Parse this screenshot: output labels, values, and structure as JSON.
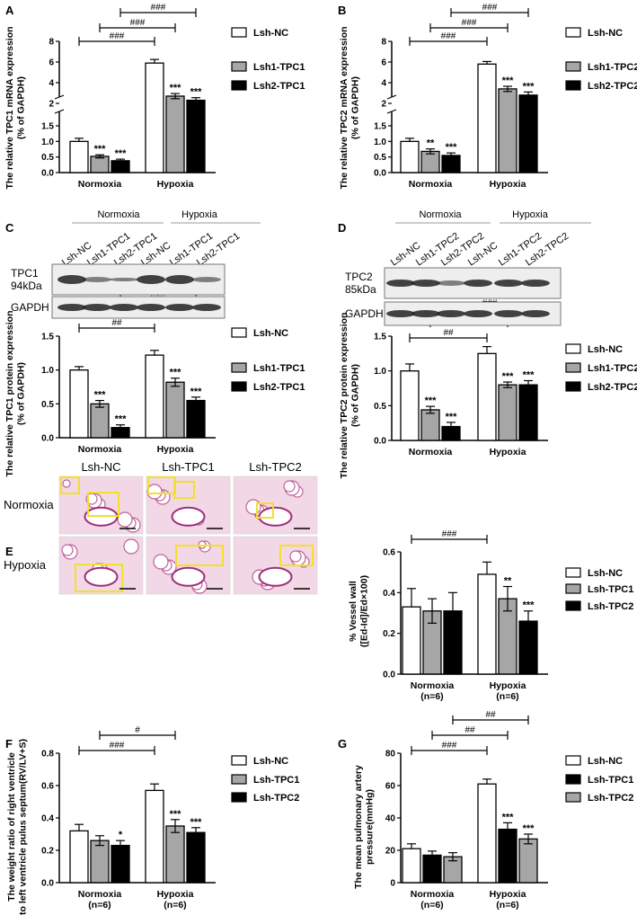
{
  "panel_letters": [
    "A",
    "B",
    "C",
    "D",
    "E",
    "F",
    "G"
  ],
  "blots": {
    "C": {
      "groups": [
        "Normoxia",
        "Hypoxia"
      ],
      "lanes": [
        "Lsh-NC",
        "Lsh1-TPC1",
        "Lsh2-TPC1",
        "Lsh-NC",
        "Lsh1-TPC1",
        "Lsh2-TPC1"
      ],
      "bands": [
        "TPC1\n94kDa",
        "GAPDH"
      ]
    },
    "D": {
      "groups": [
        "Normoxia",
        "Hypoxia"
      ],
      "lanes": [
        "Lsh-NC",
        "Lsh1-TPC2",
        "Lsh2-TPC2",
        "Lsh-NC",
        "Lsh1-TPC2",
        "Lsh2-TPC2"
      ],
      "bands": [
        "TPC2\n85kDa",
        "GAPDH"
      ]
    }
  },
  "histology": {
    "columns": [
      "Lsh-NC",
      "Lsh-TPC1",
      "Lsh-TPC2"
    ],
    "rows": [
      "Normoxia",
      "Hypoxia"
    ]
  },
  "colors": {
    "white": "#ffffff",
    "grey": "#a6a6a6",
    "black": "#000000"
  },
  "chart_data": [
    {
      "id": "A",
      "type": "bar",
      "broken_axis": true,
      "ylabel": "The relative TPC1 mRNA expression\n(% of GAPDH)",
      "categories": [
        "Normoxia",
        "Hypoxia"
      ],
      "yticks_low": [
        "0.0",
        "0.5",
        "1.0",
        "1.5"
      ],
      "yticks_high": [
        "2",
        "4",
        "6",
        "8"
      ],
      "series": [
        {
          "name": "Lsh-NC",
          "fill": "white",
          "values": [
            1.0,
            5.9
          ],
          "err": [
            0.1,
            0.35
          ],
          "sig": [
            "",
            ""
          ]
        },
        {
          "name": "Lsh1-TPC1",
          "fill": "grey",
          "values": [
            0.52,
            2.7
          ],
          "err": [
            0.05,
            0.25
          ],
          "sig": [
            "***",
            "***"
          ]
        },
        {
          "name": "Lsh2-TPC1",
          "fill": "black",
          "values": [
            0.38,
            2.3
          ],
          "err": [
            0.05,
            0.25
          ],
          "sig": [
            "***",
            "***"
          ]
        }
      ],
      "brackets": [
        "###",
        "###",
        "###"
      ]
    },
    {
      "id": "B",
      "type": "bar",
      "broken_axis": true,
      "ylabel": "The relative TPC2 mRNA expression\n(% of GAPDH)",
      "categories": [
        "Normoxia",
        "Hypoxia"
      ],
      "yticks_low": [
        "0.0",
        "0.5",
        "1.0",
        "1.5"
      ],
      "yticks_high": [
        "2",
        "4",
        "6",
        "8"
      ],
      "series": [
        {
          "name": "Lsh-NC",
          "fill": "white",
          "values": [
            1.0,
            5.8
          ],
          "err": [
            0.1,
            0.25
          ],
          "sig": [
            "",
            ""
          ]
        },
        {
          "name": "Lsh1-TPC2",
          "fill": "grey",
          "values": [
            0.68,
            3.4
          ],
          "err": [
            0.08,
            0.25
          ],
          "sig": [
            "**",
            "***"
          ]
        },
        {
          "name": "Lsh2-TPC2",
          "fill": "black",
          "values": [
            0.55,
            2.8
          ],
          "err": [
            0.08,
            0.3
          ],
          "sig": [
            "***",
            "***"
          ]
        }
      ],
      "brackets": [
        "###",
        "###",
        "###"
      ]
    },
    {
      "id": "C-bar",
      "type": "bar",
      "ylabel": "The relative TPC1 protein expression\n(% of GAPDH)",
      "categories": [
        "Normoxia",
        "Hypoxia"
      ],
      "yticks": [
        "0.0",
        "0.5",
        "1.0",
        "1.5"
      ],
      "ylim": [
        0,
        1.5
      ],
      "series": [
        {
          "name": "Lsh-NC",
          "fill": "white",
          "values": [
            1.0,
            1.22
          ],
          "err": [
            0.05,
            0.07
          ],
          "sig": [
            "",
            ""
          ]
        },
        {
          "name": "Lsh1-TPC1",
          "fill": "grey",
          "values": [
            0.5,
            0.82
          ],
          "err": [
            0.05,
            0.06
          ],
          "sig": [
            "***",
            "***"
          ]
        },
        {
          "name": "Lsh2-TPC1",
          "fill": "black",
          "values": [
            0.15,
            0.55
          ],
          "err": [
            0.04,
            0.05
          ],
          "sig": [
            "***",
            "***"
          ]
        }
      ],
      "brackets": [
        "##",
        "###",
        "###"
      ]
    },
    {
      "id": "D-bar",
      "type": "bar",
      "ylabel": "The relative TPC2 protein expression\n(% of GAPDH)",
      "categories": [
        "Normoxia",
        "Hypoxia"
      ],
      "yticks": [
        "0.0",
        "0.5",
        "1.0",
        "1.5"
      ],
      "ylim": [
        0,
        1.5
      ],
      "series": [
        {
          "name": "Lsh-NC",
          "fill": "white",
          "values": [
            1.0,
            1.25
          ],
          "err": [
            0.1,
            0.1
          ],
          "sig": [
            "",
            ""
          ]
        },
        {
          "name": "Lsh1-TPC2",
          "fill": "grey",
          "values": [
            0.44,
            0.8
          ],
          "err": [
            0.05,
            0.04
          ],
          "sig": [
            "***",
            "***"
          ]
        },
        {
          "name": "Lsh2-TPC2",
          "fill": "black",
          "values": [
            0.2,
            0.8
          ],
          "err": [
            0.06,
            0.06
          ],
          "sig": [
            "***",
            "***"
          ]
        }
      ],
      "brackets": [
        "##",
        "###",
        "###"
      ]
    },
    {
      "id": "E",
      "type": "bar",
      "ylabel": "% Vessel wall\n([Ed-Id]/Ed×100)",
      "categories": [
        "Normoxia\n(n=6)",
        "Hypoxia\n(n=6)"
      ],
      "yticks": [
        "0.0",
        "0.2",
        "0.4",
        "0.6"
      ],
      "ylim": [
        0,
        0.6
      ],
      "series": [
        {
          "name": "Lsh-NC",
          "fill": "white",
          "values": [
            0.33,
            0.49
          ],
          "err": [
            0.09,
            0.06
          ],
          "sig": [
            "",
            ""
          ]
        },
        {
          "name": "Lsh-TPC1",
          "fill": "grey",
          "values": [
            0.31,
            0.37
          ],
          "err": [
            0.06,
            0.06
          ],
          "sig": [
            "",
            "**"
          ]
        },
        {
          "name": "Lsh-TPC2",
          "fill": "black",
          "values": [
            0.31,
            0.26
          ],
          "err": [
            0.09,
            0.05
          ],
          "sig": [
            "",
            "***"
          ]
        }
      ],
      "brackets": [
        "###"
      ]
    },
    {
      "id": "F",
      "type": "bar",
      "ylabel": "The weight ratio of right ventricle\nto left ventricle pulus septum(RV/LV+S)",
      "categories": [
        "Normoxia\n(n=6)",
        "Hypoxia\n(n=6)"
      ],
      "yticks": [
        "0.0",
        "0.2",
        "0.4",
        "0.6",
        "0.8"
      ],
      "ylim": [
        0,
        0.8
      ],
      "series": [
        {
          "name": "Lsh-NC",
          "fill": "white",
          "values": [
            0.32,
            0.57
          ],
          "err": [
            0.04,
            0.04
          ],
          "sig": [
            "",
            ""
          ]
        },
        {
          "name": "Lsh-TPC1",
          "fill": "grey",
          "values": [
            0.26,
            0.35
          ],
          "err": [
            0.03,
            0.04
          ],
          "sig": [
            "",
            "***"
          ]
        },
        {
          "name": "Lsh-TPC2",
          "fill": "black",
          "values": [
            0.23,
            0.31
          ],
          "err": [
            0.03,
            0.03
          ],
          "sig": [
            "*",
            "***"
          ]
        }
      ],
      "brackets": [
        "###",
        "#"
      ]
    },
    {
      "id": "G",
      "type": "bar",
      "ylabel": "The mean pulmonary artery\npressure(mmHg)",
      "categories": [
        "Normoxia\n(n=6)",
        "Hypoxia\n(n=6)"
      ],
      "yticks": [
        "0",
        "20",
        "40",
        "60",
        "80"
      ],
      "ylim": [
        0,
        80
      ],
      "series": [
        {
          "name": "Lsh-NC",
          "fill": "white",
          "values": [
            21,
            61
          ],
          "err": [
            3,
            3
          ],
          "sig": [
            "",
            ""
          ]
        },
        {
          "name": "Lsh-TPC1",
          "fill": "black",
          "values": [
            17,
            33
          ],
          "err": [
            2.5,
            4
          ],
          "sig": [
            "",
            "***"
          ]
        },
        {
          "name": "Lsh-TPC2",
          "fill": "grey",
          "values": [
            16,
            27
          ],
          "err": [
            2.5,
            3
          ],
          "sig": [
            "",
            "***"
          ]
        }
      ],
      "brackets": [
        "###",
        "##",
        "##"
      ]
    }
  ]
}
